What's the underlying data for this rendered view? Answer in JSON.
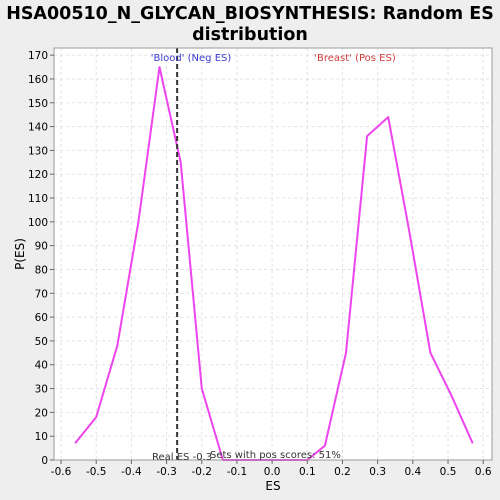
{
  "chart_data": {
    "type": "line",
    "title_lines": [
      "HSA00510_N_GLYCAN_BIOSYNTHESIS: Random ES",
      "distribution"
    ],
    "xlabel": "ES",
    "ylabel": "P(ES)",
    "xlim": [
      -0.62,
      0.625
    ],
    "ylim": [
      0,
      173
    ],
    "xticks": [
      -0.6,
      -0.5,
      -0.4,
      -0.3,
      -0.2,
      -0.1,
      0.0,
      0.1,
      0.2,
      0.3,
      0.4,
      0.5,
      0.6
    ],
    "xtick_labels": [
      "-0.6",
      "-0.5",
      "-0.4",
      "-0.3",
      "-0.2",
      "-0.1",
      "0.0",
      "0.1",
      "0.2",
      "0.3",
      "0.4",
      "0.5",
      "0.6"
    ],
    "yticks": [
      0,
      10,
      20,
      30,
      40,
      50,
      60,
      70,
      80,
      90,
      100,
      110,
      120,
      130,
      140,
      150,
      160,
      170
    ],
    "ytick_labels": [
      "0",
      "10",
      "20",
      "30",
      "40",
      "50",
      "60",
      "70",
      "80",
      "90",
      "100",
      "110",
      "120",
      "130",
      "140",
      "150",
      "160",
      "170"
    ],
    "grid": true,
    "series": [
      {
        "color": "#ee44ee",
        "x": [
          -0.56,
          -0.5,
          -0.44,
          -0.38,
          -0.32,
          -0.26,
          -0.2,
          -0.14,
          -0.08,
          -0.02,
          0.04,
          0.1,
          0.15,
          0.21,
          0.27,
          0.33,
          0.39,
          0.45,
          0.51,
          0.57
        ],
        "y": [
          7,
          18,
          48,
          100,
          165,
          125,
          30,
          0,
          0,
          0,
          0,
          0,
          6,
          45,
          136,
          144,
          96,
          45,
          27,
          7
        ]
      }
    ],
    "real_es": -0.27,
    "annotations": {
      "neg": "'Blood' (Neg ES)",
      "pos": "'Breast' (Pos ES)",
      "real_es": "Real ES -0.3",
      "pos_scores": "Sets with pos scores: 51%"
    },
    "colors": {
      "line": "#ee44ee",
      "real_es_line": "#333333",
      "neg_label": "#3c3cd0",
      "pos_label": "#d03c3c",
      "grid": "#e2e2e2"
    }
  }
}
